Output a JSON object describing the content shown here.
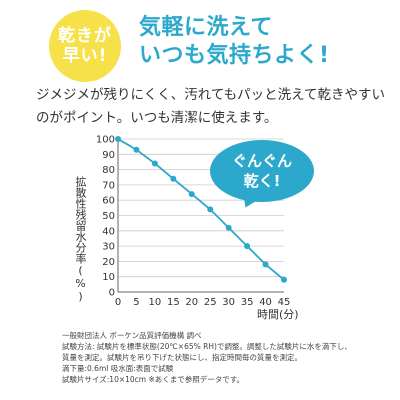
{
  "badge": {
    "line1": "乾きが",
    "line2": "早い!"
  },
  "headline": {
    "line1": "気軽に洗えて",
    "line2": "いつも気持ちよく!"
  },
  "description": {
    "line1": "ジメジメが残りにくく、汚れてもパッと洗えて乾きやすい",
    "line2": "のがポイント。いつも清潔に使えます。"
  },
  "bubble": {
    "line1": "ぐんぐん",
    "line2": "乾く!"
  },
  "notes": {
    "org": "一般財団法人 ボーケン品質評価機構 調べ",
    "method1": "試験方法: 試験片を標準状態(20℃×65% RH)で調整。調整した試験片に水を滴下し、",
    "method2": "質量を測定。試験片を吊り下げた状態にし、指定時間毎の質量を測定。",
    "drip": "滴下量:0.6ml 吸水面:表面で試験",
    "size": "試験片サイズ:10×10cm ※あくまで参照データです。"
  },
  "colors": {
    "accent": "#2ba8cc",
    "badge": "#f7e14a",
    "grid": "#cccccc"
  },
  "chart_data": {
    "type": "line",
    "xlabel": "時間(分)",
    "ylabel": "拡散性残留水分率(%)",
    "x_ticks": [
      "0",
      "5",
      "10",
      "15",
      "20",
      "25",
      "30",
      "35",
      "40",
      "45"
    ],
    "y_ticks": [
      "0",
      "10",
      "20",
      "30",
      "40",
      "50",
      "60",
      "70",
      "80",
      "90",
      "100"
    ],
    "xlim": [
      0,
      45
    ],
    "ylim": [
      0,
      100
    ],
    "grid": true,
    "series": [
      {
        "x": [
          0,
          5,
          10,
          15,
          20,
          25,
          30,
          35,
          40,
          45
        ],
        "values": [
          100,
          93,
          84,
          74,
          64,
          54,
          42,
          30,
          18,
          8
        ]
      }
    ]
  }
}
